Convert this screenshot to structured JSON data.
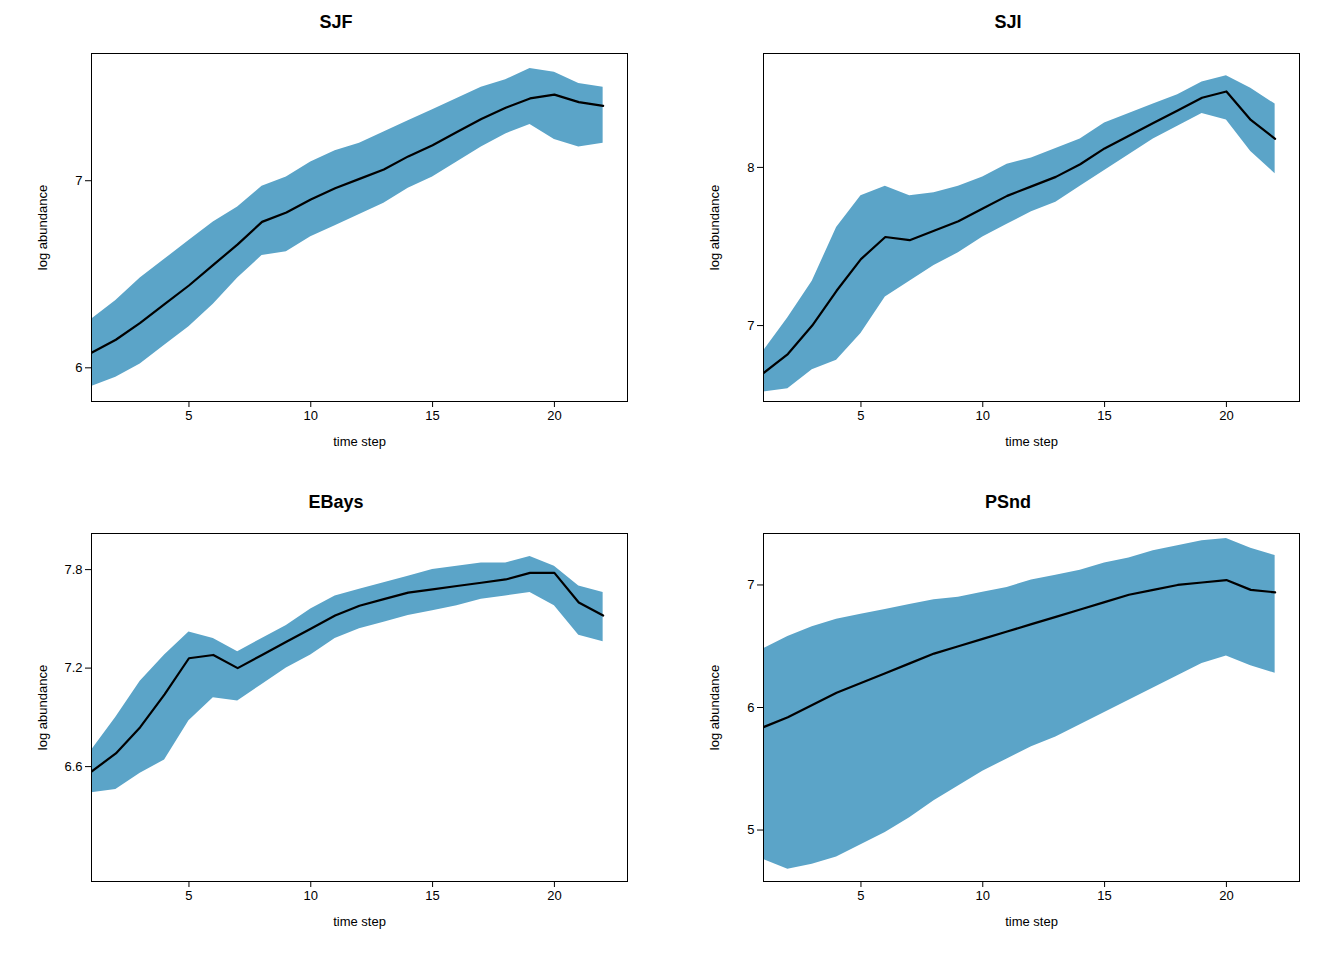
{
  "chart_data": [
    {
      "type": "line",
      "title": "SJF",
      "xlabel": "time step",
      "ylabel": "log abundance",
      "x": [
        1,
        2,
        3,
        4,
        5,
        6,
        7,
        8,
        9,
        10,
        11,
        12,
        13,
        14,
        15,
        16,
        17,
        18,
        19,
        20,
        21,
        22
      ],
      "xlim": [
        1,
        23
      ],
      "xticks": [
        5,
        10,
        15,
        20
      ],
      "ylim": [
        5.82,
        7.68
      ],
      "yticks": [
        6,
        7
      ],
      "grid": false,
      "series": [
        {
          "type": "area",
          "color": "#5BA4C8",
          "lower": [
            5.9,
            5.95,
            6.02,
            6.12,
            6.22,
            6.34,
            6.48,
            6.6,
            6.62,
            6.7,
            6.76,
            6.82,
            6.88,
            6.96,
            7.02,
            7.1,
            7.18,
            7.25,
            7.3,
            7.22,
            7.18,
            7.2
          ],
          "upper": [
            6.26,
            6.36,
            6.48,
            6.58,
            6.68,
            6.78,
            6.86,
            6.97,
            7.02,
            7.1,
            7.16,
            7.2,
            7.26,
            7.32,
            7.38,
            7.44,
            7.5,
            7.54,
            7.6,
            7.58,
            7.52,
            7.5
          ]
        },
        {
          "type": "line",
          "color": "#000000",
          "values": [
            6.08,
            6.15,
            6.24,
            6.34,
            6.44,
            6.55,
            6.66,
            6.78,
            6.83,
            6.9,
            6.96,
            7.01,
            7.06,
            7.13,
            7.19,
            7.26,
            7.33,
            7.39,
            7.44,
            7.46,
            7.42,
            7.4
          ]
        }
      ]
    },
    {
      "type": "line",
      "title": "SJI",
      "xlabel": "time step",
      "ylabel": "log abundance",
      "x": [
        1,
        2,
        3,
        4,
        5,
        6,
        7,
        8,
        9,
        10,
        11,
        12,
        13,
        14,
        15,
        16,
        17,
        18,
        19,
        20,
        21,
        22
      ],
      "xlim": [
        1,
        23
      ],
      "xticks": [
        5,
        10,
        15,
        20
      ],
      "ylim": [
        6.52,
        8.72
      ],
      "yticks": [
        7,
        8
      ],
      "grid": false,
      "series": [
        {
          "type": "area",
          "color": "#5BA4C8",
          "lower": [
            6.58,
            6.6,
            6.72,
            6.78,
            6.95,
            7.18,
            7.28,
            7.38,
            7.46,
            7.56,
            7.64,
            7.72,
            7.78,
            7.88,
            7.98,
            8.08,
            8.18,
            8.26,
            8.34,
            8.3,
            8.1,
            7.96
          ],
          "upper": [
            6.84,
            7.05,
            7.28,
            7.62,
            7.82,
            7.88,
            7.82,
            7.84,
            7.88,
            7.94,
            8.02,
            8.06,
            8.12,
            8.18,
            8.28,
            8.34,
            8.4,
            8.46,
            8.54,
            8.58,
            8.5,
            8.4
          ]
        },
        {
          "type": "line",
          "color": "#000000",
          "values": [
            6.7,
            6.82,
            7.0,
            7.22,
            7.42,
            7.56,
            7.54,
            7.6,
            7.66,
            7.74,
            7.82,
            7.88,
            7.94,
            8.02,
            8.12,
            8.2,
            8.28,
            8.36,
            8.44,
            8.48,
            8.3,
            8.18
          ]
        }
      ]
    },
    {
      "type": "line",
      "title": "EBays",
      "xlabel": "time step",
      "ylabel": "log abundance",
      "x": [
        1,
        2,
        3,
        4,
        5,
        6,
        7,
        8,
        9,
        10,
        11,
        12,
        13,
        14,
        15,
        16,
        17,
        18,
        19,
        20,
        21,
        22
      ],
      "xlim": [
        1,
        23
      ],
      "xticks": [
        5,
        10,
        15,
        20
      ],
      "ylim": [
        5.9,
        8.02
      ],
      "yticks": [
        6.6,
        7.2,
        7.8
      ],
      "grid": false,
      "series": [
        {
          "type": "area",
          "color": "#5BA4C8",
          "lower": [
            6.44,
            6.46,
            6.56,
            6.64,
            6.88,
            7.02,
            7.0,
            7.1,
            7.2,
            7.28,
            7.38,
            7.44,
            7.48,
            7.52,
            7.55,
            7.58,
            7.62,
            7.64,
            7.66,
            7.58,
            7.4,
            7.36
          ],
          "upper": [
            6.7,
            6.9,
            7.12,
            7.28,
            7.42,
            7.38,
            7.3,
            7.38,
            7.46,
            7.56,
            7.64,
            7.68,
            7.72,
            7.76,
            7.8,
            7.82,
            7.84,
            7.84,
            7.88,
            7.82,
            7.7,
            7.66
          ]
        },
        {
          "type": "line",
          "color": "#000000",
          "values": [
            6.57,
            6.68,
            6.84,
            7.04,
            7.26,
            7.28,
            7.2,
            7.28,
            7.36,
            7.44,
            7.52,
            7.58,
            7.62,
            7.66,
            7.68,
            7.7,
            7.72,
            7.74,
            7.78,
            7.78,
            7.6,
            7.52
          ]
        }
      ]
    },
    {
      "type": "line",
      "title": "PSnd",
      "xlabel": "time step",
      "ylabel": "log abundance",
      "x": [
        1,
        2,
        3,
        4,
        5,
        6,
        7,
        8,
        9,
        10,
        11,
        12,
        13,
        14,
        15,
        16,
        17,
        18,
        19,
        20,
        21,
        22
      ],
      "xlim": [
        1,
        23
      ],
      "xticks": [
        5,
        10,
        15,
        20
      ],
      "ylim": [
        4.58,
        7.42
      ],
      "yticks": [
        5,
        6,
        7
      ],
      "grid": false,
      "series": [
        {
          "type": "area",
          "color": "#5BA4C8",
          "lower": [
            4.76,
            4.68,
            4.72,
            4.78,
            4.88,
            4.98,
            5.1,
            5.24,
            5.36,
            5.48,
            5.58,
            5.68,
            5.76,
            5.86,
            5.96,
            6.06,
            6.16,
            6.26,
            6.36,
            6.42,
            6.34,
            6.28
          ],
          "upper": [
            6.48,
            6.58,
            6.66,
            6.72,
            6.76,
            6.8,
            6.84,
            6.88,
            6.9,
            6.94,
            6.98,
            7.04,
            7.08,
            7.12,
            7.18,
            7.22,
            7.28,
            7.32,
            7.36,
            7.38,
            7.3,
            7.24
          ]
        },
        {
          "type": "line",
          "color": "#000000",
          "values": [
            5.84,
            5.92,
            6.02,
            6.12,
            6.2,
            6.28,
            6.36,
            6.44,
            6.5,
            6.56,
            6.62,
            6.68,
            6.74,
            6.8,
            6.86,
            6.92,
            6.96,
            7.0,
            7.02,
            7.04,
            6.96,
            6.94
          ]
        }
      ]
    }
  ]
}
